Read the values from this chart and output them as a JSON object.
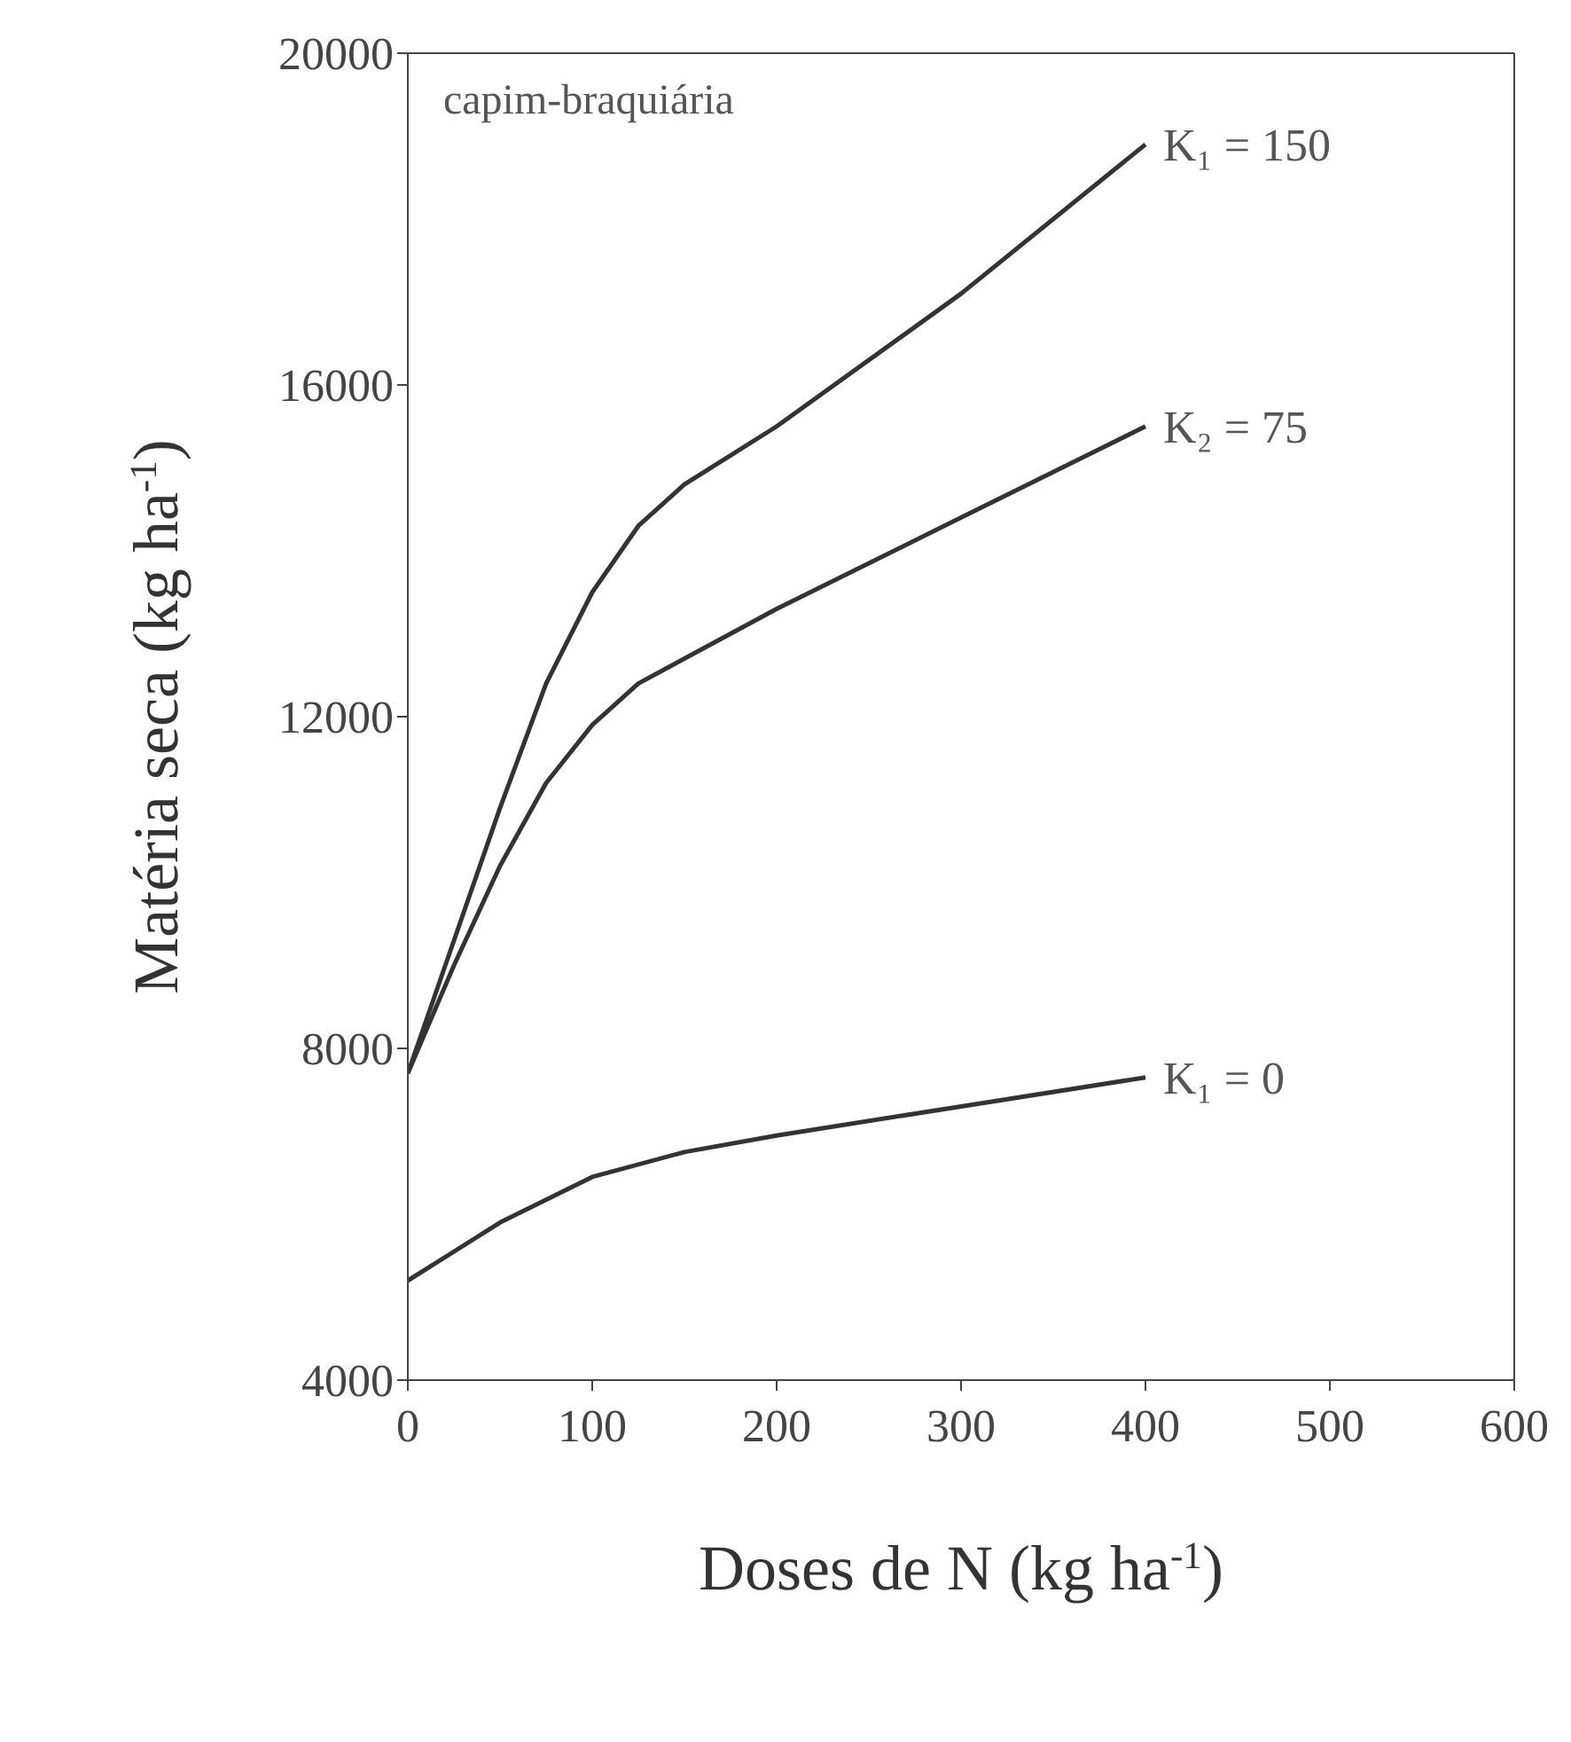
{
  "chart_data": {
    "type": "line",
    "xlabel": "Doses de N (kg ha$^{-1}$)",
    "ylabel": "Matéria seca (kg ha$^{-1}$)",
    "annotations": [
      "capim-braquiária"
    ],
    "xlim": [
      0,
      600
    ],
    "xticks": [
      0,
      100,
      200,
      300,
      400,
      500,
      600
    ],
    "ylim": [
      4000,
      20000
    ],
    "yticks": [
      4000,
      8000,
      12000,
      16000,
      20000
    ],
    "grid": false,
    "marker": "none",
    "line_style": "solid",
    "series": [
      {
        "name": "K₁ = 150",
        "color": "#333333",
        "x": [
          0,
          25,
          50,
          75,
          100,
          125,
          150,
          200,
          300,
          400
        ],
        "values": [
          7700,
          9300,
          10900,
          12400,
          13500,
          14300,
          14800,
          15500,
          17100,
          18900
        ]
      },
      {
        "name": "K₂ = 75",
        "color": "#333333",
        "x": [
          0,
          25,
          50,
          75,
          100,
          125,
          150,
          200,
          300,
          400
        ],
        "values": [
          7700,
          9000,
          10200,
          11200,
          11900,
          12400,
          12700,
          13300,
          14400,
          15500
        ]
      },
      {
        "name": "K₁ = 0",
        "color": "#333333",
        "x": [
          0,
          50,
          100,
          150,
          200,
          300,
          400
        ],
        "values": [
          5200,
          5900,
          6450,
          6750,
          6950,
          7300,
          7650
        ]
      }
    ]
  }
}
